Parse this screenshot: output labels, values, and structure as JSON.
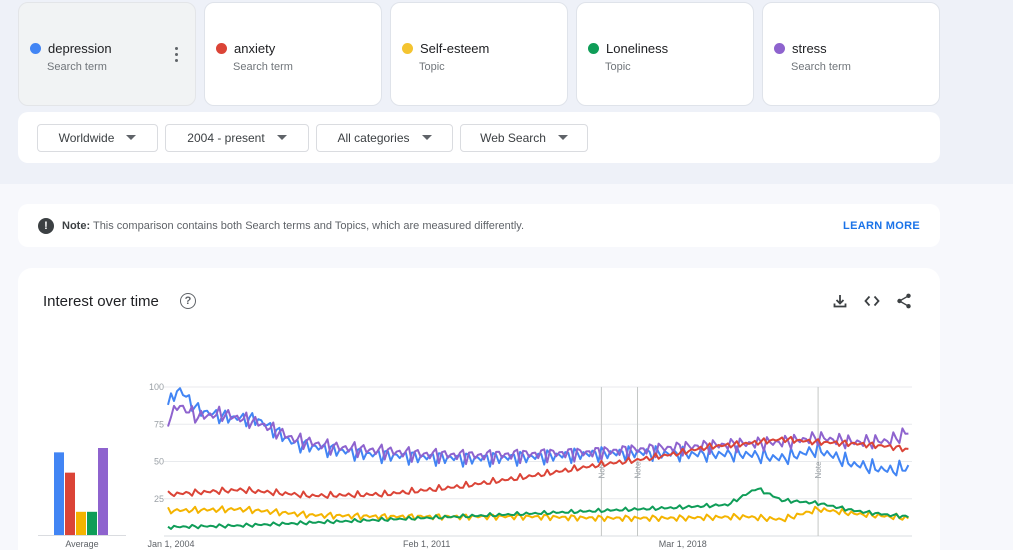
{
  "terms": [
    {
      "name": "depression",
      "type": "Search term",
      "color": "#4285f4",
      "active": true
    },
    {
      "name": "anxiety",
      "type": "Search term",
      "color": "#db4437"
    },
    {
      "name": "Self-esteem",
      "type": "Topic",
      "color": "#f4b400"
    },
    {
      "name": "Loneliness",
      "type": "Topic",
      "color": "#0f9d58"
    },
    {
      "name": "stress",
      "type": "Search term",
      "color": "#8e63ce"
    }
  ],
  "filters": {
    "region": "Worldwide",
    "time": "2004 - present",
    "category": "All categories",
    "property": "Web Search"
  },
  "note": {
    "label": "Note:",
    "text": "This comparison contains both Search terms and Topics, which are measured differently.",
    "link": "LEARN MORE"
  },
  "chart": {
    "title": "Interest over time",
    "icons": [
      "download-icon",
      "embed-icon",
      "share-icon"
    ]
  },
  "chart_data": {
    "type": "line",
    "x_ticks": [
      "Jan 1, 2004",
      "Feb 1, 2011",
      "Mar 1, 2018"
    ],
    "y_ticks": [
      25,
      50,
      75,
      100
    ],
    "ylim": [
      0,
      100
    ],
    "average_label": "Average",
    "note_markers": [
      "Note",
      "Note",
      "Note"
    ],
    "averages": [
      57,
      43,
      16,
      16,
      60
    ],
    "series": [
      {
        "name": "depression",
        "color": "#4285f4",
        "points": [
          [
            2004.0,
            88
          ],
          [
            2004.3,
            99
          ],
          [
            2004.8,
            85
          ],
          [
            2005.5,
            80
          ],
          [
            2006.5,
            78
          ],
          [
            2007.5,
            62
          ],
          [
            2008.5,
            58
          ],
          [
            2009.5,
            55
          ],
          [
            2011.0,
            53
          ],
          [
            2012.5,
            52
          ],
          [
            2014.0,
            53
          ],
          [
            2015.5,
            55
          ],
          [
            2017.0,
            56
          ],
          [
            2018.5,
            55
          ],
          [
            2020.0,
            55
          ],
          [
            2021.0,
            52
          ],
          [
            2022.0,
            58
          ],
          [
            2023.0,
            48
          ],
          [
            2024.0,
            44
          ],
          [
            2024.5,
            46
          ]
        ]
      },
      {
        "name": "anxiety",
        "color": "#db4437",
        "points": [
          [
            2004.0,
            28
          ],
          [
            2006.0,
            31
          ],
          [
            2008.0,
            27
          ],
          [
            2010.0,
            28
          ],
          [
            2012.0,
            33
          ],
          [
            2014.0,
            40
          ],
          [
            2016.0,
            48
          ],
          [
            2017.0,
            51
          ],
          [
            2018.0,
            55
          ],
          [
            2019.0,
            60
          ],
          [
            2020.0,
            62
          ],
          [
            2021.0,
            65
          ],
          [
            2022.0,
            63
          ],
          [
            2023.0,
            62
          ],
          [
            2024.0,
            60
          ],
          [
            2024.5,
            58
          ]
        ]
      },
      {
        "name": "Self-esteem",
        "color": "#f4b400",
        "points": [
          [
            2004.0,
            17
          ],
          [
            2006.0,
            18
          ],
          [
            2008.0,
            14
          ],
          [
            2010.0,
            13
          ],
          [
            2012.0,
            13
          ],
          [
            2014.0,
            13
          ],
          [
            2016.0,
            12
          ],
          [
            2018.0,
            12
          ],
          [
            2020.0,
            13
          ],
          [
            2021.0,
            11
          ],
          [
            2022.0,
            18
          ],
          [
            2023.0,
            15
          ],
          [
            2024.0,
            13
          ],
          [
            2024.5,
            12
          ]
        ]
      },
      {
        "name": "Loneliness",
        "color": "#0f9d58",
        "points": [
          [
            2004.0,
            6
          ],
          [
            2006.0,
            7
          ],
          [
            2008.0,
            9
          ],
          [
            2010.0,
            11
          ],
          [
            2012.0,
            13
          ],
          [
            2014.0,
            15
          ],
          [
            2016.0,
            17
          ],
          [
            2018.0,
            19
          ],
          [
            2019.5,
            21
          ],
          [
            2020.3,
            32
          ],
          [
            2021.0,
            24
          ],
          [
            2022.0,
            22
          ],
          [
            2023.0,
            17
          ],
          [
            2024.0,
            14
          ],
          [
            2024.5,
            13
          ]
        ]
      },
      {
        "name": "stress",
        "color": "#8e63ce",
        "points": [
          [
            2004.0,
            78
          ],
          [
            2004.3,
            88
          ],
          [
            2004.8,
            80
          ],
          [
            2005.5,
            82
          ],
          [
            2006.5,
            76
          ],
          [
            2007.5,
            65
          ],
          [
            2008.5,
            60
          ],
          [
            2009.5,
            58
          ],
          [
            2011.0,
            55
          ],
          [
            2012.5,
            54
          ],
          [
            2014.0,
            55
          ],
          [
            2015.5,
            56
          ],
          [
            2017.0,
            58
          ],
          [
            2018.5,
            60
          ],
          [
            2020.0,
            62
          ],
          [
            2021.0,
            63
          ],
          [
            2022.0,
            66
          ],
          [
            2023.0,
            63
          ],
          [
            2024.0,
            64
          ],
          [
            2024.5,
            70
          ]
        ]
      }
    ]
  }
}
